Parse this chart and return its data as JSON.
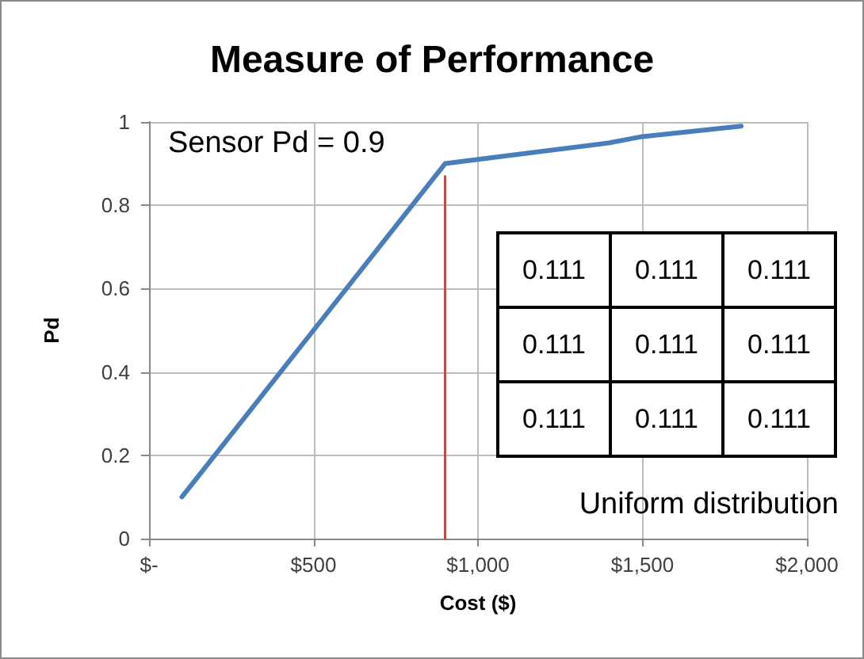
{
  "chart_data": {
    "type": "line",
    "title": "Measure of Performance",
    "xlabel": "Cost ($)",
    "ylabel": "Pd",
    "xlim": [
      0,
      2000
    ],
    "xticks": [
      {
        "value": 0,
        "label": "$-"
      },
      {
        "value": 500,
        "label": "$500"
      },
      {
        "value": 1000,
        "label": "$1,000"
      },
      {
        "value": 1500,
        "label": "$1,500"
      },
      {
        "value": 2000,
        "label": "$2,000"
      }
    ],
    "ylim": [
      0,
      1
    ],
    "yticks": [
      0,
      0.2,
      0.4,
      0.6,
      0.8,
      1
    ],
    "grid": true,
    "marker": "none",
    "line_style": "solid",
    "series": [
      {
        "color": "#4a7ebb",
        "x": [
          100,
          500,
          900,
          1100,
          1400,
          1500,
          1800
        ],
        "values": [
          0.1,
          0.5,
          0.9,
          0.92,
          0.95,
          0.965,
          0.99
        ]
      },
      {
        "color": "#be4b48",
        "x": [
          900,
          900
        ],
        "values": [
          0,
          0.87
        ]
      }
    ],
    "annotations": [
      "Sensor Pd = 0.9",
      "Uniform distribution",
      "0.111",
      "0.111",
      "0.111",
      "0.111",
      "0.111",
      "0.111",
      "0.111",
      "0.111",
      "0.111"
    ]
  }
}
